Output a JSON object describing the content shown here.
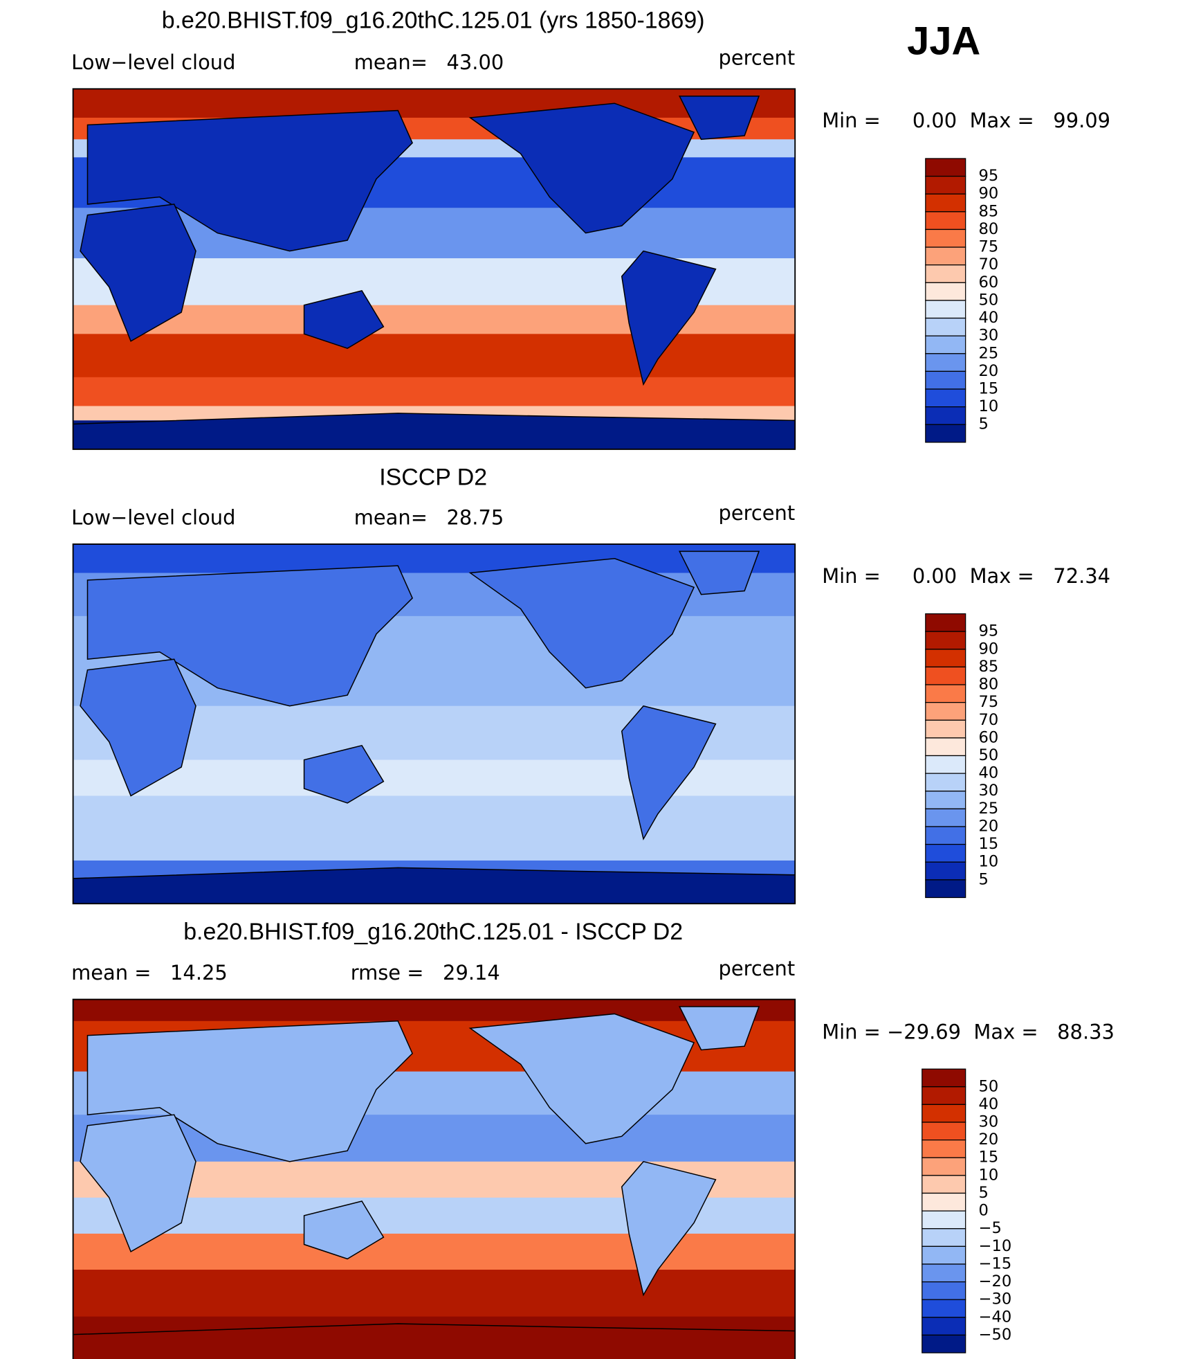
{
  "season": "JJA",
  "panels": [
    {
      "title": "b.e20.BHIST.f09_g16.20thC.125.01 (yrs 1850-1869)",
      "left": "Low−level cloud",
      "center": "mean=   43.00",
      "right": "percent",
      "minmax": "Min =     0.00  Max =   99.09",
      "colorbar": {
        "labels": [
          "95",
          "90",
          "85",
          "80",
          "75",
          "70",
          "60",
          "50",
          "40",
          "30",
          "25",
          "20",
          "15",
          "10",
          "5"
        ],
        "colors": [
          "#8f0a00",
          "#b21a00",
          "#d33000",
          "#ef5020",
          "#fa7a48",
          "#fca27a",
          "#fdc9ae",
          "#fde8dc",
          "#dbe9fa",
          "#b8d2f8",
          "#92b7f4",
          "#6a95ee",
          "#4270e6",
          "#1f4ddb",
          "#0b2db6",
          "#001a87"
        ]
      }
    },
    {
      "title": "ISCCP D2",
      "left": "Low−level cloud",
      "center": "mean=   28.75",
      "right": "percent",
      "minmax": "Min =     0.00  Max =   72.34",
      "colorbar": {
        "labels": [
          "95",
          "90",
          "85",
          "80",
          "75",
          "70",
          "60",
          "50",
          "40",
          "30",
          "25",
          "20",
          "15",
          "10",
          "5"
        ],
        "colors": [
          "#8f0a00",
          "#b21a00",
          "#d33000",
          "#ef5020",
          "#fa7a48",
          "#fca27a",
          "#fdc9ae",
          "#fde8dc",
          "#dbe9fa",
          "#b8d2f8",
          "#92b7f4",
          "#6a95ee",
          "#4270e6",
          "#1f4ddb",
          "#0b2db6",
          "#001a87"
        ]
      }
    },
    {
      "title": "b.e20.BHIST.f09_g16.20thC.125.01 - ISCCP D2",
      "left": "mean =   14.25",
      "center": "rmse =   29.14",
      "right": "percent",
      "minmax": "Min = −29.69  Max =   88.33",
      "colorbar": {
        "labels": [
          "50",
          "40",
          "30",
          "20",
          "15",
          "10",
          "5",
          "0",
          "−5",
          "−10",
          "−15",
          "−20",
          "−30",
          "−40",
          "−50"
        ],
        "colors": [
          "#8f0a00",
          "#b21a00",
          "#d33000",
          "#ef5020",
          "#fa7a48",
          "#fca27a",
          "#fdc9ae",
          "#fde8dc",
          "#dbe9fa",
          "#b8d2f8",
          "#92b7f4",
          "#6a95ee",
          "#4270e6",
          "#1f4ddb",
          "#0b2db6",
          "#001a87"
        ]
      }
    }
  ]
}
